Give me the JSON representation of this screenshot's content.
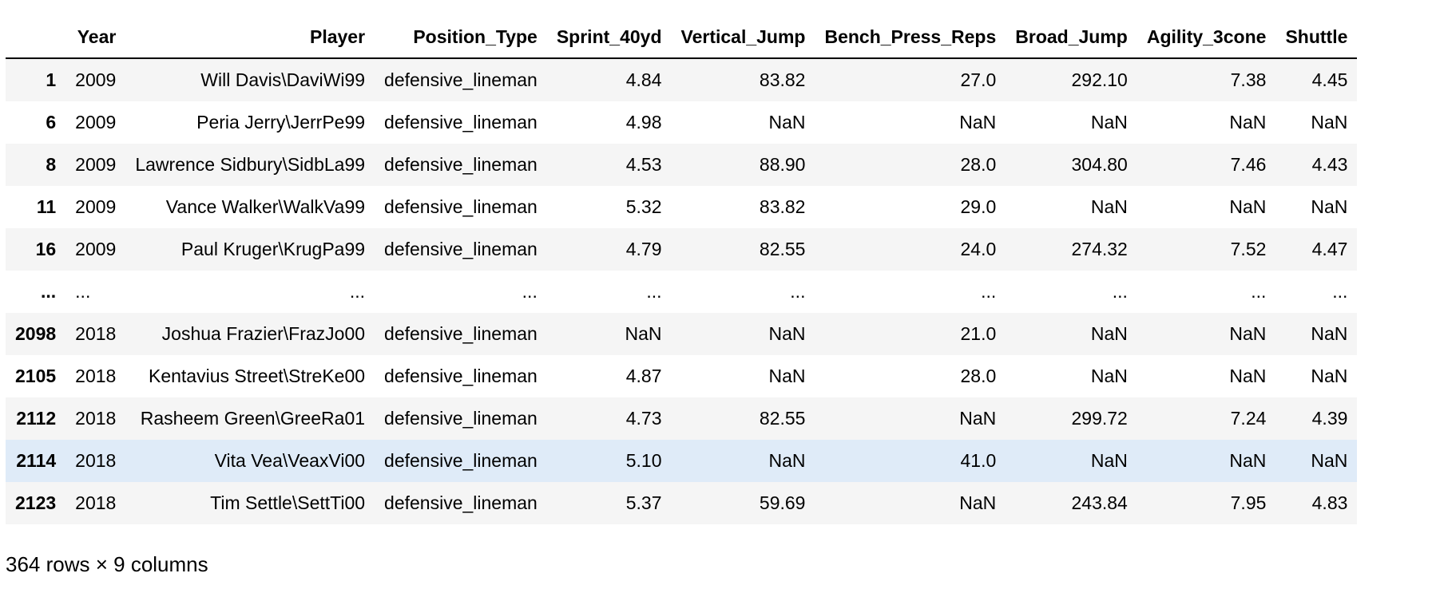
{
  "dataframe": {
    "columns": [
      "",
      "Year",
      "Player",
      "Position_Type",
      "Sprint_40yd",
      "Vertical_Jump",
      "Bench_Press_Reps",
      "Broad_Jump",
      "Agility_3cone",
      "Shuttle"
    ],
    "rows": [
      {
        "index": "1",
        "cells": [
          "2009",
          "Will Davis\\DaviWi99",
          "defensive_lineman",
          "4.84",
          "83.82",
          "27.0",
          "292.10",
          "7.38",
          "4.45"
        ]
      },
      {
        "index": "6",
        "cells": [
          "2009",
          "Peria Jerry\\JerrPe99",
          "defensive_lineman",
          "4.98",
          "NaN",
          "NaN",
          "NaN",
          "NaN",
          "NaN"
        ]
      },
      {
        "index": "8",
        "cells": [
          "2009",
          "Lawrence Sidbury\\SidbLa99",
          "defensive_lineman",
          "4.53",
          "88.90",
          "28.0",
          "304.80",
          "7.46",
          "4.43"
        ]
      },
      {
        "index": "11",
        "cells": [
          "2009",
          "Vance Walker\\WalkVa99",
          "defensive_lineman",
          "5.32",
          "83.82",
          "29.0",
          "NaN",
          "NaN",
          "NaN"
        ]
      },
      {
        "index": "16",
        "cells": [
          "2009",
          "Paul Kruger\\KrugPa99",
          "defensive_lineman",
          "4.79",
          "82.55",
          "24.0",
          "274.32",
          "7.52",
          "4.47"
        ]
      },
      {
        "index": "...",
        "cells": [
          "...",
          "...",
          "...",
          "...",
          "...",
          "...",
          "...",
          "...",
          "..."
        ]
      },
      {
        "index": "2098",
        "cells": [
          "2018",
          "Joshua Frazier\\FrazJo00",
          "defensive_lineman",
          "NaN",
          "NaN",
          "21.0",
          "NaN",
          "NaN",
          "NaN"
        ]
      },
      {
        "index": "2105",
        "cells": [
          "2018",
          "Kentavius Street\\StreKe00",
          "defensive_lineman",
          "4.87",
          "NaN",
          "28.0",
          "NaN",
          "NaN",
          "NaN"
        ]
      },
      {
        "index": "2112",
        "cells": [
          "2018",
          "Rasheem Green\\GreeRa01",
          "defensive_lineman",
          "4.73",
          "82.55",
          "NaN",
          "299.72",
          "7.24",
          "4.39"
        ]
      },
      {
        "index": "2114",
        "cells": [
          "2018",
          "Vita Vea\\VeaxVi00",
          "defensive_lineman",
          "5.10",
          "NaN",
          "41.0",
          "NaN",
          "NaN",
          "NaN"
        ]
      },
      {
        "index": "2123",
        "cells": [
          "2018",
          "Tim Settle\\SettTi00",
          "defensive_lineman",
          "5.37",
          "59.69",
          "NaN",
          "243.84",
          "7.95",
          "4.83"
        ]
      }
    ],
    "hovered_row_index": "2114",
    "shape_text": "364 rows × 9 columns"
  },
  "colors": {
    "stripe": "#f5f5f5",
    "hover": "#dfebf8",
    "header_rule": "#000000"
  }
}
